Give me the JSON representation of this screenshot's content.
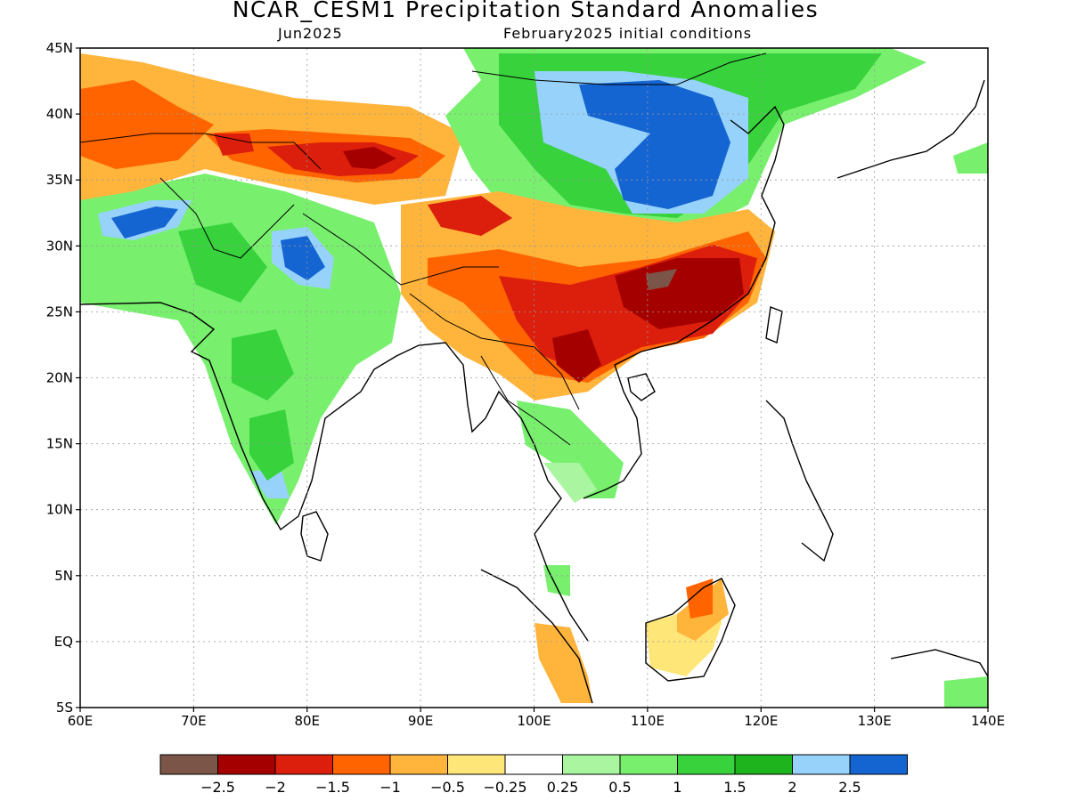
{
  "title": "NCAR_CESM1 Precipitation Standard Anomalies",
  "subtitle_left": "Jun2025",
  "subtitle_right": "February2025 initial conditions",
  "lat_labels": [
    "45N",
    "40N",
    "35N",
    "30N",
    "25N",
    "20N",
    "15N",
    "10N",
    "5N",
    "EQ",
    "5S"
  ],
  "lon_labels": [
    "60E",
    "70E",
    "80E",
    "90E",
    "100E",
    "110E",
    "120E",
    "130E",
    "140E"
  ],
  "colorbar": {
    "colors": [
      "#7b5548",
      "#a50000",
      "#dc1e0c",
      "#ff6400",
      "#ffb43c",
      "#ffe678",
      "#ffffff",
      "#aaf5a0",
      "#78f06e",
      "#37d23c",
      "#1eb41e",
      "#96d2fa",
      "#1464d2"
    ],
    "ticks": [
      "−2.5",
      "−2",
      "−1.5",
      "−1",
      "−0.5",
      "−0.25",
      "0.25",
      "0.5",
      "1",
      "1.5",
      "2",
      "2.5"
    ]
  }
}
